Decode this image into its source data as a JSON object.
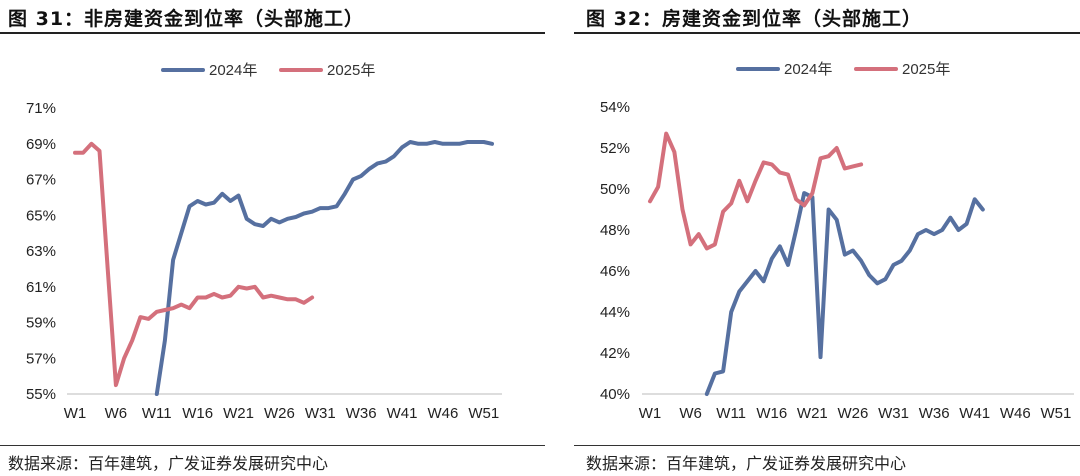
{
  "colors": {
    "s2024": "#5670A0",
    "s2025": "#D4707C"
  },
  "charts": [
    {
      "title": "图 31：非房建资金到位率（头部施工）",
      "source": "数据来源：百年建筑，广发证券发展研究中心"
    },
    {
      "title": "图 32：房建资金到位率（头部施工）",
      "source": "数据来源：百年建筑，广发证券发展研究中心"
    }
  ],
  "chart_data": [
    {
      "type": "line",
      "title": "图 31：非房建资金到位率（头部施工）",
      "x_tick_labels": [
        "W1",
        "W6",
        "W11",
        "W16",
        "W21",
        "W26",
        "W31",
        "W36",
        "W41",
        "W46",
        "W51"
      ],
      "y_tick_labels": [
        "55%",
        "57%",
        "59%",
        "61%",
        "63%",
        "65%",
        "67%",
        "69%",
        "71%"
      ],
      "ylim": [
        55,
        71
      ],
      "xlim": [
        1,
        52
      ],
      "legend": [
        "2024年",
        "2025年"
      ],
      "series": [
        {
          "name": "2024年",
          "color": "#5670A0",
          "x": [
            11,
            12,
            13,
            14,
            15,
            16,
            17,
            18,
            19,
            20,
            21,
            22,
            23,
            24,
            25,
            26,
            27,
            28,
            29,
            30,
            31,
            32,
            33,
            34,
            35,
            36,
            37,
            38,
            39,
            40,
            41,
            42,
            43,
            44,
            45,
            46,
            47,
            48,
            49,
            50,
            51,
            52
          ],
          "values": [
            55.0,
            58.0,
            62.5,
            64.0,
            65.5,
            65.8,
            65.6,
            65.7,
            66.2,
            65.8,
            66.1,
            64.8,
            64.5,
            64.4,
            64.8,
            64.6,
            64.8,
            64.9,
            65.1,
            65.2,
            65.4,
            65.4,
            65.5,
            66.2,
            67.0,
            67.2,
            67.6,
            67.9,
            68.0,
            68.3,
            68.8,
            69.1,
            69.0,
            69.0,
            69.1,
            69.0,
            69.0,
            69.0,
            69.1,
            69.1,
            69.1,
            69.0
          ]
        },
        {
          "name": "2025年",
          "color": "#D4707C",
          "x": [
            1,
            2,
            3,
            4,
            5,
            6,
            7,
            8,
            9,
            10,
            11,
            12,
            13,
            14,
            15,
            16,
            17,
            18,
            19,
            20,
            21,
            22,
            23,
            24,
            25,
            26,
            27,
            28,
            29,
            30,
            31,
            32
          ],
          "values": [
            68.5,
            68.5,
            69.0,
            68.6,
            62.0,
            55.5,
            57.0,
            58.0,
            59.3,
            59.2,
            59.6,
            59.7,
            59.8,
            60.0,
            59.8,
            60.4,
            60.4,
            60.6,
            60.4,
            60.5,
            61.0,
            60.9,
            61.0,
            60.4,
            60.5,
            60.4,
            60.3,
            60.3,
            60.1,
            60.4,
            null,
            null
          ]
        }
      ]
    },
    {
      "type": "line",
      "title": "图 32：房建资金到位率（头部施工）",
      "x_tick_labels": [
        "W1",
        "W6",
        "W11",
        "W16",
        "W21",
        "W26",
        "W31",
        "W36",
        "W41",
        "W46",
        "W51"
      ],
      "y_tick_labels": [
        "40%",
        "42%",
        "44%",
        "46%",
        "48%",
        "50%",
        "52%",
        "54%"
      ],
      "ylim": [
        40,
        54
      ],
      "xlim": [
        1,
        52
      ],
      "legend": [
        "2024年",
        "2025年"
      ],
      "series": [
        {
          "name": "2024年",
          "color": "#5670A0",
          "x": [
            8,
            9,
            10,
            11,
            12,
            13,
            14,
            15,
            16,
            17,
            18,
            19,
            20,
            21,
            22,
            23,
            24,
            25,
            26,
            27,
            28,
            29,
            30,
            31,
            32,
            33,
            34,
            35,
            36,
            37,
            38,
            39,
            40,
            41,
            42,
            43,
            44,
            45,
            46,
            47,
            48,
            49,
            50,
            51,
            52
          ],
          "values": [
            40.0,
            41.0,
            41.1,
            44.0,
            45.0,
            45.5,
            46.0,
            45.5,
            46.6,
            47.2,
            46.3,
            48.0,
            49.8,
            49.6,
            41.8,
            49.0,
            48.5,
            46.8,
            47.0,
            46.5,
            45.8,
            45.4,
            45.6,
            46.3,
            46.5,
            47.0,
            47.8,
            48.0,
            47.8,
            48.0,
            48.6,
            48.0,
            48.3,
            49.5,
            49.0,
            null,
            null,
            null,
            null,
            null,
            null,
            null,
            null,
            null,
            null
          ],
          "x_override": [
            8,
            9,
            10,
            11,
            12,
            13,
            14,
            15,
            16,
            17,
            18,
            19,
            20,
            21,
            22,
            23,
            24,
            25,
            26,
            27,
            28,
            29,
            30,
            31,
            32,
            33,
            34,
            35,
            36,
            37,
            38,
            39,
            40,
            41,
            42,
            43,
            44,
            45,
            46,
            47,
            48,
            49,
            50,
            51,
            52
          ]
        },
        {
          "name": "2025年",
          "color": "#D4707C",
          "x": [
            1,
            2,
            3,
            4,
            5,
            6,
            7,
            8,
            9,
            10,
            11,
            12,
            13,
            14,
            15,
            16,
            17,
            18,
            19,
            20,
            21,
            22,
            23,
            24,
            25,
            26,
            27,
            28,
            29,
            30,
            31,
            32
          ],
          "values": [
            49.4,
            50.1,
            52.7,
            51.8,
            49.0,
            47.3,
            47.8,
            47.1,
            47.3,
            48.9,
            49.3,
            50.4,
            49.4,
            50.4,
            51.3,
            51.2,
            50.8,
            50.7,
            49.5,
            49.2,
            49.8,
            51.5,
            51.6,
            52.0,
            51.0,
            51.1,
            51.2,
            null,
            null,
            null,
            null,
            null
          ]
        }
      ]
    }
  ]
}
